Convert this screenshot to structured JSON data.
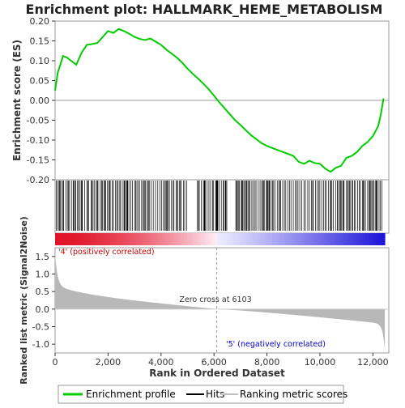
{
  "chart_data": {
    "type": "line",
    "title": "Enrichment plot: HALLMARK_HEME_METABOLISM",
    "xlabel": "Rank in Ordered Dataset",
    "ylabel_top": "Enrichment score (ES)",
    "ylabel_bottom": "Ranked list metric (Signal2Noise)",
    "xlim": [
      0,
      12600
    ],
    "es_ylim": [
      -0.2,
      0.2
    ],
    "es_yticks": [
      "0.20",
      "0.15",
      "0.10",
      "0.05",
      "0.00",
      "-0.05",
      "-0.10",
      "-0.15",
      "-0.20"
    ],
    "es_ytick_values": [
      0.2,
      0.15,
      0.1,
      0.05,
      0,
      -0.05,
      -0.1,
      -0.15,
      -0.2
    ],
    "metric_ylim": [
      -1.25,
      1.75
    ],
    "metric_yticks": [
      "1.5",
      "1.0",
      "0.5",
      "0.0",
      "-0.5",
      "-1.0"
    ],
    "metric_ytick_values": [
      1.5,
      1.0,
      0.5,
      0.0,
      -0.5,
      -1.0
    ],
    "xticks": [
      "0",
      "2,000",
      "4,000",
      "6,000",
      "8,000",
      "10,000",
      "12,000"
    ],
    "xtick_values": [
      0,
      2000,
      4000,
      6000,
      8000,
      10000,
      12000
    ],
    "series": [
      {
        "name": "Enrichment profile",
        "color": "#00cc00",
        "x": [
          0,
          100,
          200,
          300,
          450,
          600,
          800,
          1000,
          1200,
          1400,
          1600,
          1800,
          2000,
          2200,
          2400,
          2600,
          2800,
          3000,
          3200,
          3400,
          3600,
          3800,
          4000,
          4200,
          4400,
          4600,
          4800,
          5000,
          5200,
          5400,
          5600,
          5800,
          6000,
          6200,
          6400,
          6600,
          6800,
          7000,
          7200,
          7400,
          7600,
          7800,
          8000,
          8200,
          8400,
          8600,
          8800,
          9000,
          9200,
          9400,
          9600,
          9800,
          10000,
          10200,
          10400,
          10600,
          10800,
          11000,
          11200,
          11400,
          11600,
          11800,
          12000,
          12200,
          12300,
          12400
        ],
        "y": [
          0.025,
          0.07,
          0.09,
          0.112,
          0.108,
          0.1,
          0.09,
          0.12,
          0.14,
          0.142,
          0.145,
          0.16,
          0.175,
          0.17,
          0.18,
          0.175,
          0.168,
          0.16,
          0.155,
          0.152,
          0.156,
          0.148,
          0.14,
          0.128,
          0.118,
          0.108,
          0.095,
          0.08,
          0.067,
          0.055,
          0.042,
          0.028,
          0.012,
          -0.005,
          -0.02,
          -0.035,
          -0.05,
          -0.062,
          -0.075,
          -0.088,
          -0.098,
          -0.108,
          -0.115,
          -0.12,
          -0.125,
          -0.13,
          -0.135,
          -0.14,
          -0.155,
          -0.16,
          -0.152,
          -0.158,
          -0.16,
          -0.172,
          -0.18,
          -0.17,
          -0.165,
          -0.145,
          -0.14,
          -0.13,
          -0.115,
          -0.105,
          -0.09,
          -0.065,
          -0.035,
          0.005
        ]
      },
      {
        "name": "Hits"
      },
      {
        "name": "Ranking metric scores",
        "color": "#c0c0c0"
      }
    ],
    "zero_cross_rank": 6103,
    "annotations": {
      "zero_cross": "Zero cross at 6103",
      "pos": "'4' (positively correlated)",
      "neg": "'5' (negatively correlated)"
    },
    "grid": false,
    "legend_placement": "bottom",
    "colors": {
      "profile": "#00cc00",
      "hit": "#000000",
      "metric_fill": "#b8b8b8",
      "pos_label": "#cc0000",
      "neg_label": "#0000cc",
      "zero_line": "#999999"
    }
  }
}
